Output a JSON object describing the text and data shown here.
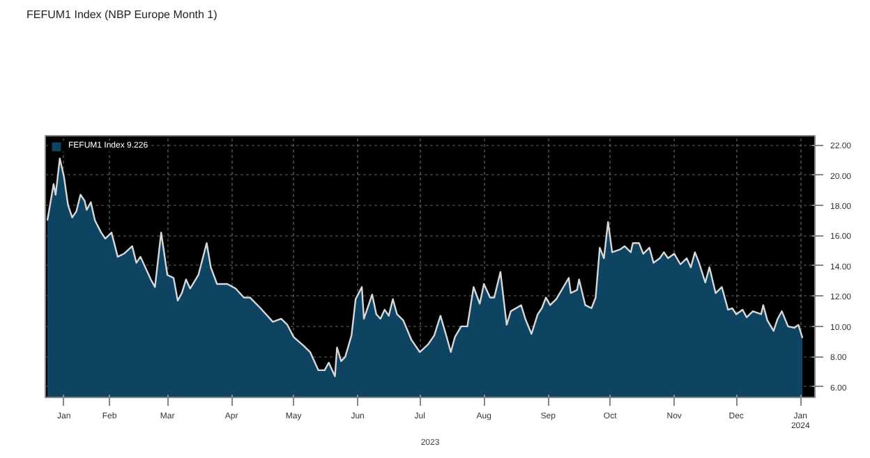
{
  "chart_data": {
    "type": "area",
    "title": "FEFUM1 Index (NBP Europe Month 1)",
    "xlabel": "2023",
    "x": [
      "2023-01-02",
      "2023-01-05",
      "2023-01-06",
      "2023-01-08",
      "2023-01-10",
      "2023-01-12",
      "2023-01-14",
      "2023-01-16",
      "2023-01-18",
      "2023-01-20",
      "2023-01-21",
      "2023-01-23",
      "2023-01-25",
      "2023-01-28",
      "2023-01-30",
      "2023-02-02",
      "2023-02-05",
      "2023-02-08",
      "2023-02-12",
      "2023-02-14",
      "2023-02-16",
      "2023-02-21",
      "2023-02-23",
      "2023-02-26",
      "2023-03-01",
      "2023-03-04",
      "2023-03-06",
      "2023-03-08",
      "2023-03-10",
      "2023-03-12",
      "2023-03-16",
      "2023-03-20",
      "2023-03-22",
      "2023-03-25",
      "2023-03-30",
      "2023-04-03",
      "2023-04-07",
      "2023-04-10",
      "2023-04-15",
      "2023-04-21",
      "2023-04-25",
      "2023-04-28",
      "2023-05-01",
      "2023-05-06",
      "2023-05-09",
      "2023-05-13",
      "2023-05-16",
      "2023-05-18",
      "2023-05-21",
      "2023-05-22",
      "2023-05-24",
      "2023-05-26",
      "2023-05-29",
      "2023-05-31",
      "2023-06-03",
      "2023-06-04",
      "2023-06-08",
      "2023-06-10",
      "2023-06-12",
      "2023-06-14",
      "2023-06-16",
      "2023-06-18",
      "2023-06-20",
      "2023-06-23",
      "2023-06-27",
      "2023-07-01",
      "2023-07-05",
      "2023-07-08",
      "2023-07-11",
      "2023-07-14",
      "2023-07-16",
      "2023-07-18",
      "2023-07-21",
      "2023-07-24",
      "2023-07-27",
      "2023-07-30",
      "2023-08-01",
      "2023-08-04",
      "2023-08-06",
      "2023-08-09",
      "2023-08-12",
      "2023-08-14",
      "2023-08-19",
      "2023-08-21",
      "2023-08-24",
      "2023-08-27",
      "2023-08-29",
      "2023-08-31",
      "2023-09-02",
      "2023-09-05",
      "2023-09-08",
      "2023-09-11",
      "2023-09-12",
      "2023-09-15",
      "2023-09-16",
      "2023-09-19",
      "2023-09-22",
      "2023-09-24",
      "2023-09-26",
      "2023-09-28",
      "2023-09-30",
      "2023-10-02",
      "2023-10-06",
      "2023-10-08",
      "2023-10-11",
      "2023-10-12",
      "2023-10-15",
      "2023-10-17",
      "2023-10-20",
      "2023-10-22",
      "2023-10-25",
      "2023-10-27",
      "2023-10-29",
      "2023-11-01",
      "2023-11-04",
      "2023-11-07",
      "2023-11-09",
      "2023-11-11",
      "2023-11-13",
      "2023-11-16",
      "2023-11-18",
      "2023-11-21",
      "2023-11-24",
      "2023-11-27",
      "2023-11-29",
      "2023-12-01",
      "2023-12-04",
      "2023-12-06",
      "2023-12-09",
      "2023-12-13",
      "2023-12-14",
      "2023-12-16",
      "2023-12-19",
      "2023-12-21",
      "2023-12-23",
      "2023-12-26",
      "2023-12-29",
      "2023-12-31",
      "2024-01-02"
    ],
    "series": [
      {
        "name": "FEFUM1 Index 9.226",
        "color": "#0e4462",
        "values": [
          17.0,
          19.4,
          18.7,
          21.1,
          19.9,
          18.0,
          17.2,
          17.6,
          18.7,
          18.3,
          17.7,
          18.2,
          17.0,
          16.2,
          15.8,
          16.2,
          14.6,
          14.8,
          15.3,
          14.2,
          14.6,
          13.1,
          12.6,
          16.2,
          13.4,
          13.2,
          11.7,
          12.2,
          13.1,
          12.5,
          13.4,
          15.5,
          13.9,
          12.8,
          12.8,
          12.5,
          11.9,
          11.9,
          11.2,
          10.3,
          10.5,
          10.1,
          9.3,
          8.7,
          8.3,
          7.1,
          7.1,
          7.6,
          6.7,
          8.6,
          7.7,
          8.0,
          9.4,
          11.8,
          12.6,
          10.5,
          12.1,
          10.8,
          10.5,
          11.1,
          10.7,
          11.8,
          10.8,
          10.4,
          9.1,
          8.3,
          8.8,
          9.4,
          10.7,
          9.3,
          8.3,
          9.3,
          10.0,
          10.0,
          12.6,
          11.5,
          12.8,
          11.9,
          11.9,
          13.6,
          10.1,
          11.0,
          11.4,
          10.5,
          9.5,
          10.8,
          11.2,
          11.9,
          11.4,
          11.8,
          12.5,
          13.2,
          12.2,
          12.4,
          13.1,
          11.4,
          11.2,
          11.9,
          15.2,
          14.5,
          16.9,
          14.9,
          15.1,
          15.3,
          14.9,
          15.5,
          15.5,
          14.8,
          15.2,
          14.2,
          14.5,
          14.9,
          14.5,
          14.8,
          14.1,
          14.5,
          13.9,
          14.9,
          14.2,
          12.9,
          13.9,
          12.2,
          12.6,
          11.1,
          11.2,
          10.8,
          11.1,
          10.6,
          11.0,
          10.8,
          11.4,
          10.4,
          9.7,
          10.5,
          11.0,
          10.0,
          9.9,
          10.1,
          9.226
        ]
      }
    ],
    "xlim": [
      "2023-01-01",
      "2024-01-08"
    ],
    "xticks": [
      {
        "value": "2023-01-10",
        "label": "Jan"
      },
      {
        "value": "2023-02-01",
        "label": "Feb"
      },
      {
        "value": "2023-03-01",
        "label": "Mar"
      },
      {
        "value": "2023-04-01",
        "label": "Apr"
      },
      {
        "value": "2023-05-01",
        "label": "May"
      },
      {
        "value": "2023-06-01",
        "label": "Jun"
      },
      {
        "value": "2023-07-01",
        "label": "Jul"
      },
      {
        "value": "2023-08-01",
        "label": "Aug"
      },
      {
        "value": "2023-09-01",
        "label": "Sep"
      },
      {
        "value": "2023-10-01",
        "label": "Oct"
      },
      {
        "value": "2023-11-01",
        "label": "Nov"
      },
      {
        "value": "2023-12-01",
        "label": "Dec"
      },
      {
        "value": "2024-01-01",
        "label": "Jan\n2024"
      }
    ],
    "ylim": [
      5.3,
      22.6
    ],
    "yticks": [
      {
        "value": 6,
        "label": "6.00"
      },
      {
        "value": 8,
        "label": "8.00"
      },
      {
        "value": 10,
        "label": "10.00"
      },
      {
        "value": 12,
        "label": "12.00"
      },
      {
        "value": 14,
        "label": "14.00"
      },
      {
        "value": 16,
        "label": "16.00"
      },
      {
        "value": 18,
        "label": "18.00"
      },
      {
        "value": 20,
        "label": "20.00"
      },
      {
        "value": 22,
        "label": "22.00"
      }
    ],
    "grid": true,
    "legend": "top left"
  }
}
